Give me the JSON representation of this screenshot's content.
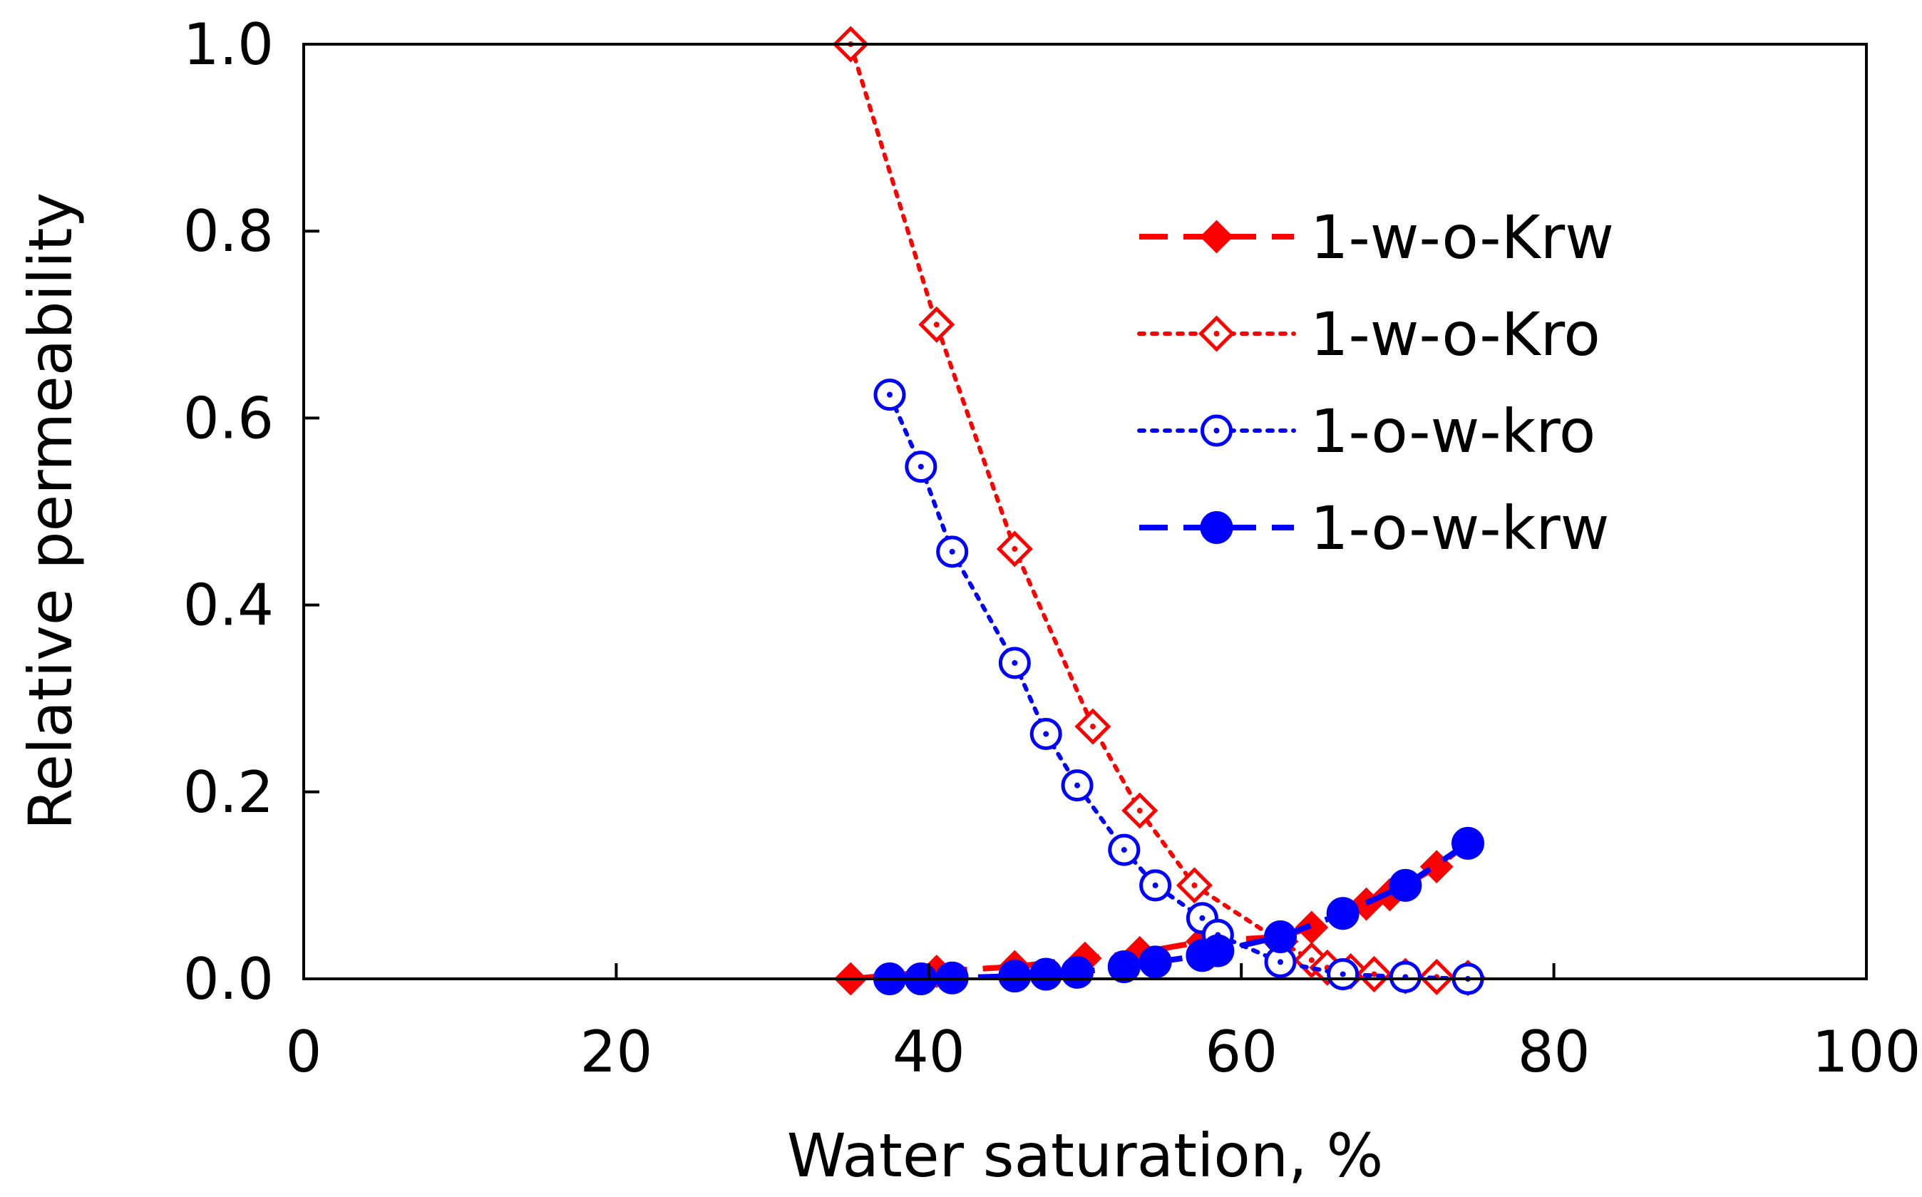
{
  "chart_data": {
    "type": "line",
    "xlabel": "Water saturation, %",
    "ylabel": "Relative permeability",
    "xlim": [
      0,
      100
    ],
    "ylim": [
      0,
      1.0
    ],
    "xticks": [
      "0",
      "20",
      "40",
      "60",
      "80",
      "100"
    ],
    "yticks": [
      "0.0",
      "0.2",
      "0.4",
      "0.6",
      "0.8",
      "1.0"
    ],
    "grid": false,
    "legend_position": "right",
    "series": [
      {
        "name": "1-w-o-Krw",
        "color": "#ff0000",
        "marker": "diamond-filled",
        "line": "dashed",
        "x": [
          35.0,
          40.5,
          45.5,
          50.0,
          53.5,
          57.5,
          62.5,
          64.5,
          66.5,
          68.0,
          69.5,
          72.5,
          74.5
        ],
        "y": [
          0.0,
          0.008,
          0.013,
          0.022,
          0.028,
          0.04,
          0.045,
          0.055,
          0.07,
          0.08,
          0.09,
          0.12,
          0.145
        ]
      },
      {
        "name": "1-w-o-Kro",
        "color": "#ff0000",
        "marker": "diamond-open",
        "line": "dotted",
        "x": [
          35.0,
          40.5,
          45.5,
          50.5,
          53.5,
          57.0,
          62.5,
          64.5,
          65.5,
          67.0,
          68.5,
          70.5,
          72.5,
          74.5
        ],
        "y": [
          1.0,
          0.7,
          0.46,
          0.27,
          0.18,
          0.1,
          0.04,
          0.02,
          0.012,
          0.008,
          0.005,
          0.003,
          0.002,
          0.001
        ]
      },
      {
        "name": "1-o-w-kro",
        "color": "#0000ff",
        "marker": "circle-open",
        "line": "dotted",
        "x": [
          37.5,
          39.5,
          41.5,
          45.5,
          47.5,
          49.5,
          52.5,
          54.5,
          57.5,
          58.5,
          62.5,
          66.5,
          70.5,
          74.5
        ],
        "y": [
          0.625,
          0.548,
          0.457,
          0.338,
          0.262,
          0.207,
          0.138,
          0.1,
          0.065,
          0.047,
          0.018,
          0.005,
          0.002,
          0.0
        ]
      },
      {
        "name": "1-o-w-krw",
        "color": "#0000ff",
        "marker": "circle-filled",
        "line": "dashed",
        "x": [
          37.5,
          39.5,
          41.5,
          45.5,
          47.5,
          49.5,
          52.5,
          54.5,
          57.5,
          58.5,
          62.5,
          66.5,
          70.5,
          74.5
        ],
        "y": [
          0.0,
          0.0,
          0.001,
          0.003,
          0.005,
          0.007,
          0.013,
          0.018,
          0.025,
          0.03,
          0.045,
          0.07,
          0.1,
          0.145
        ]
      }
    ]
  }
}
